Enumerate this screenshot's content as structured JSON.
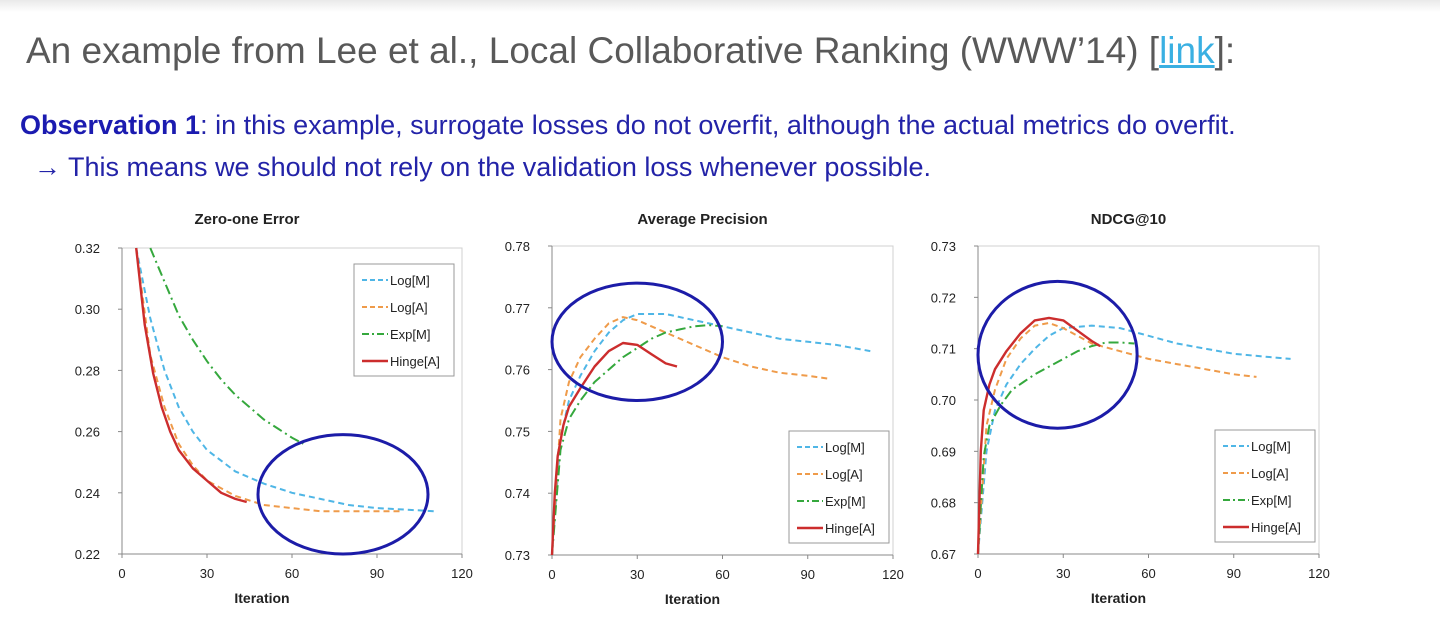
{
  "header": {
    "title_prefix": "An example from Lee et al., Local Collaborative Ranking (WWW’14) [",
    "link_label": "link",
    "title_suffix": "]:"
  },
  "observation": {
    "label": "Observation 1",
    "text": ": in this example, surrogate losses do not overfit, although the actual metrics do overfit.",
    "line2": "→ This means we should not rely on the validation loss whenever possible."
  },
  "colors": {
    "log_m": "#4fb6e6",
    "log_a": "#ef9b4a",
    "exp_m": "#35a83d",
    "hinge_a": "#cc2d2d",
    "circle": "#1c1ca8"
  },
  "chart_data": [
    {
      "type": "line",
      "title": "Zero-one Error",
      "xlabel": "Iteration",
      "ylabel": "",
      "xlim": [
        0,
        120
      ],
      "ylim": [
        0.22,
        0.32
      ],
      "xticks": [
        "0",
        "30",
        "60",
        "90",
        "120"
      ],
      "yticks": [
        "0.22",
        "0.24",
        "0.26",
        "0.28",
        "0.30",
        "0.32"
      ],
      "legend_position": "top-right",
      "series": [
        {
          "name": "Log[M]",
          "style": "dashed",
          "color": "#4fb6e6",
          "x": [
            5,
            10,
            15,
            20,
            25,
            30,
            40,
            50,
            60,
            70,
            80,
            90,
            100,
            110
          ],
          "y": [
            0.32,
            0.297,
            0.28,
            0.268,
            0.26,
            0.254,
            0.247,
            0.243,
            0.24,
            0.238,
            0.236,
            0.235,
            0.2345,
            0.234
          ]
        },
        {
          "name": "Log[A]",
          "style": "dashed",
          "color": "#ef9b4a",
          "x": [
            5,
            10,
            15,
            20,
            25,
            30,
            40,
            50,
            60,
            70,
            80,
            90,
            98
          ],
          "y": [
            0.32,
            0.285,
            0.268,
            0.256,
            0.249,
            0.244,
            0.239,
            0.236,
            0.235,
            0.234,
            0.234,
            0.234,
            0.234
          ]
        },
        {
          "name": "Exp[M]",
          "style": "dashdot",
          "color": "#35a83d",
          "x": [
            10,
            15,
            20,
            25,
            30,
            35,
            40,
            45,
            50,
            55,
            60,
            64
          ],
          "y": [
            0.32,
            0.309,
            0.298,
            0.29,
            0.283,
            0.277,
            0.272,
            0.268,
            0.264,
            0.261,
            0.258,
            0.256
          ]
        },
        {
          "name": "Hinge[A]",
          "style": "solid",
          "color": "#cc2d2d",
          "x": [
            5,
            8,
            11,
            14,
            17,
            20,
            25,
            30,
            35,
            40,
            44
          ],
          "y": [
            0.32,
            0.295,
            0.279,
            0.268,
            0.26,
            0.254,
            0.248,
            0.244,
            0.24,
            0.238,
            0.237
          ]
        }
      ],
      "annotation": {
        "shape": "ellipse",
        "center": [
          78,
          0.2395
        ],
        "radii": [
          30,
          0.0195
        ]
      }
    },
    {
      "type": "line",
      "title": "Average Precision",
      "xlabel": "Iteration",
      "ylabel": "",
      "xlim": [
        0,
        120
      ],
      "ylim": [
        0.73,
        0.78
      ],
      "xticks": [
        "0",
        "30",
        "60",
        "90",
        "120"
      ],
      "yticks": [
        "0.73",
        "0.74",
        "0.75",
        "0.76",
        "0.77",
        "0.78"
      ],
      "legend_position": "bottom-right",
      "series": [
        {
          "name": "Log[M]",
          "style": "dashed",
          "color": "#4fb6e6",
          "x": [
            0,
            3,
            6,
            10,
            15,
            20,
            25,
            30,
            40,
            50,
            60,
            70,
            80,
            90,
            100,
            112
          ],
          "y": [
            0.73,
            0.749,
            0.755,
            0.759,
            0.763,
            0.766,
            0.768,
            0.769,
            0.769,
            0.768,
            0.767,
            0.766,
            0.765,
            0.7645,
            0.764,
            0.763
          ]
        },
        {
          "name": "Log[A]",
          "style": "dashed",
          "color": "#ef9b4a",
          "x": [
            0,
            3,
            6,
            10,
            15,
            20,
            25,
            30,
            40,
            50,
            60,
            70,
            80,
            90,
            98
          ],
          "y": [
            0.73,
            0.752,
            0.758,
            0.762,
            0.765,
            0.7675,
            0.7685,
            0.768,
            0.766,
            0.764,
            0.762,
            0.7605,
            0.7595,
            0.759,
            0.7585
          ]
        },
        {
          "name": "Exp[M]",
          "style": "dashdot",
          "color": "#35a83d",
          "x": [
            0,
            3,
            6,
            10,
            15,
            20,
            25,
            30,
            35,
            40,
            45,
            50,
            55,
            60
          ],
          "y": [
            0.73,
            0.747,
            0.752,
            0.755,
            0.758,
            0.76,
            0.762,
            0.7635,
            0.765,
            0.766,
            0.7665,
            0.767,
            0.7672,
            0.767
          ]
        },
        {
          "name": "Hinge[A]",
          "style": "solid",
          "color": "#cc2d2d",
          "x": [
            0,
            1,
            2,
            4,
            6,
            10,
            15,
            20,
            25,
            30,
            35,
            40,
            44
          ],
          "y": [
            0.73,
            0.74,
            0.746,
            0.751,
            0.754,
            0.757,
            0.7605,
            0.763,
            0.7643,
            0.764,
            0.7625,
            0.761,
            0.7605
          ]
        }
      ],
      "annotation": {
        "shape": "ellipse",
        "center": [
          30,
          0.7645
        ],
        "radii": [
          30,
          0.0095
        ]
      }
    },
    {
      "type": "line",
      "title": "NDCG@10",
      "xlabel": "Iteration",
      "ylabel": "",
      "xlim": [
        0,
        120
      ],
      "ylim": [
        0.67,
        0.73
      ],
      "xticks": [
        "0",
        "30",
        "60",
        "90",
        "120"
      ],
      "yticks": [
        "0.67",
        "0.68",
        "0.69",
        "0.70",
        "0.71",
        "0.72",
        "0.73"
      ],
      "legend_position": "bottom-right",
      "series": [
        {
          "name": "Log[M]",
          "style": "dashed",
          "color": "#4fb6e6",
          "x": [
            0,
            3,
            6,
            10,
            15,
            20,
            25,
            30,
            40,
            50,
            60,
            70,
            80,
            90,
            100,
            110
          ],
          "y": [
            0.67,
            0.69,
            0.698,
            0.703,
            0.707,
            0.71,
            0.7125,
            0.714,
            0.7145,
            0.714,
            0.7125,
            0.711,
            0.71,
            0.709,
            0.7085,
            0.708
          ]
        },
        {
          "name": "Log[A]",
          "style": "dashed",
          "color": "#ef9b4a",
          "x": [
            0,
            3,
            6,
            10,
            15,
            20,
            25,
            30,
            35,
            40,
            50,
            60,
            70,
            80,
            90,
            98
          ],
          "y": [
            0.67,
            0.695,
            0.702,
            0.708,
            0.712,
            0.7145,
            0.715,
            0.714,
            0.7125,
            0.711,
            0.7095,
            0.708,
            0.707,
            0.706,
            0.705,
            0.7045
          ]
        },
        {
          "name": "Exp[M]",
          "style": "dashdot",
          "color": "#35a83d",
          "x": [
            0,
            2,
            4,
            8,
            12,
            16,
            20,
            25,
            30,
            35,
            40,
            45,
            50,
            55
          ],
          "y": [
            0.67,
            0.689,
            0.695,
            0.699,
            0.702,
            0.7035,
            0.705,
            0.7065,
            0.708,
            0.7095,
            0.7105,
            0.7112,
            0.7112,
            0.711
          ]
        },
        {
          "name": "Hinge[A]",
          "style": "solid",
          "color": "#cc2d2d",
          "x": [
            0,
            1,
            2,
            4,
            6,
            10,
            15,
            20,
            25,
            30,
            35,
            40,
            43
          ],
          "y": [
            0.67,
            0.69,
            0.698,
            0.703,
            0.706,
            0.7095,
            0.713,
            0.7155,
            0.716,
            0.7155,
            0.7135,
            0.7115,
            0.7105
          ]
        }
      ],
      "annotation": {
        "shape": "ellipse",
        "center": [
          28,
          0.7088
        ],
        "radii": [
          28,
          0.0143
        ]
      }
    }
  ]
}
